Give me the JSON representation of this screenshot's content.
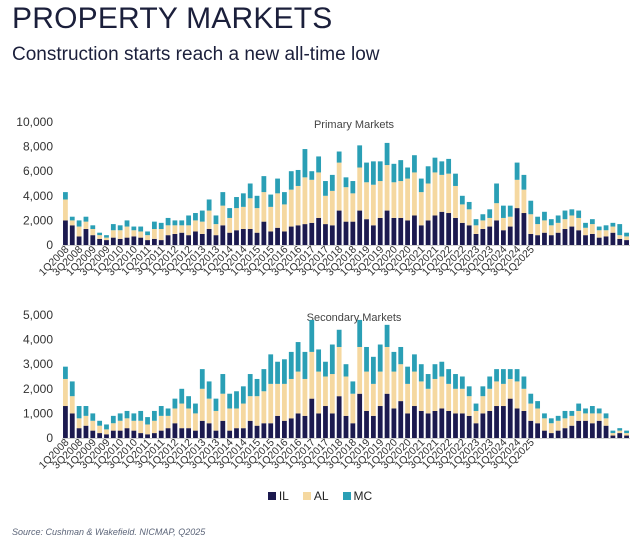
{
  "header": {
    "title": "PROPERTY MARKETS",
    "subtitle": "Construction starts reach a new all-time low"
  },
  "source": "Source: Cushman & Wakefield. NICMAP, Q2025",
  "colors": {
    "IL": "#1c1a4f",
    "AL": "#f5d8a0",
    "MC": "#2a9fb5"
  },
  "chart_data": [
    {
      "type": "bar",
      "stacked": true,
      "title": "Primary Markets",
      "xlabel": "",
      "ylabel": "",
      "ylim": [
        0,
        10000
      ],
      "yticks": [
        "0",
        "2,000",
        "4,000",
        "6,000",
        "8,000",
        "10,000"
      ],
      "ytick_values": [
        0,
        2000,
        4000,
        6000,
        8000,
        10000
      ],
      "grid": false,
      "legend": "bottom-center",
      "x_tick_labels": [
        "1Q2008",
        "3Q2008",
        "1Q2009",
        "3Q2009",
        "1Q2010",
        "3Q2010",
        "1Q2011",
        "3Q2011",
        "1Q2012",
        "3Q2012",
        "1Q2013",
        "3Q2013",
        "1Q2014",
        "3Q2014",
        "1Q2015",
        "3Q2015",
        "1Q2016",
        "3Q2016",
        "1Q2017",
        "3Q2017",
        "1Q2018",
        "3Q2018",
        "1Q2019",
        "3Q2019",
        "1Q2020",
        "3Q2020",
        "1Q2021",
        "3Q2021",
        "1Q2022",
        "3Q2022",
        "1Q2023",
        "3Q2023",
        "1Q2024",
        "3Q2024",
        "1Q2025"
      ],
      "series": [
        {
          "name": "IL",
          "values": [
            2000,
            1600,
            700,
            1300,
            800,
            500,
            400,
            600,
            500,
            600,
            700,
            600,
            400,
            500,
            400,
            800,
            900,
            1000,
            800,
            1100,
            900,
            1300,
            800,
            1600,
            1000,
            1200,
            1300,
            1300,
            1000,
            1900,
            1100,
            1400,
            1100,
            1500,
            1600,
            1700,
            1800,
            2200,
            1700,
            1600,
            2800,
            1900,
            1900,
            2800,
            2100,
            1600,
            2200,
            2800,
            2200,
            2200,
            2000,
            2400,
            1600,
            2000,
            2400,
            2700,
            2600,
            2200,
            1800,
            1600,
            900,
            1300,
            1500,
            2000,
            1200,
            1500,
            3000,
            2600,
            900,
            800,
            1000,
            800,
            1000,
            1300,
            1500,
            1200,
            800,
            900,
            600,
            700,
            1000,
            500,
            400
          ]
        },
        {
          "name": "AL",
          "values": [
            1700,
            400,
            800,
            600,
            500,
            300,
            200,
            600,
            700,
            900,
            500,
            500,
            400,
            800,
            900,
            800,
            700,
            600,
            800,
            900,
            1000,
            1500,
            900,
            1600,
            1200,
            1800,
            1800,
            2500,
            2000,
            2400,
            2000,
            2800,
            2200,
            3000,
            3200,
            3800,
            3500,
            3700,
            2300,
            2800,
            3900,
            2800,
            2300,
            3500,
            3000,
            3300,
            3000,
            3700,
            2900,
            3000,
            3400,
            3500,
            2700,
            3000,
            3500,
            3000,
            3200,
            2600,
            1500,
            1300,
            700,
            700,
            700,
            1400,
            1000,
            800,
            2300,
            1900,
            1600,
            900,
            1000,
            800,
            800,
            800,
            900,
            1000,
            600,
            800,
            600,
            500,
            500,
            300,
            300
          ]
        },
        {
          "name": "MC",
          "values": [
            600,
            300,
            500,
            400,
            300,
            200,
            200,
            500,
            400,
            500,
            300,
            400,
            300,
            600,
            500,
            600,
            400,
            400,
            800,
            600,
            900,
            900,
            700,
            1100,
            800,
            900,
            1100,
            1200,
            1000,
            1300,
            1000,
            1200,
            1000,
            1500,
            1300,
            2300,
            700,
            1300,
            1200,
            1300,
            900,
            800,
            1000,
            1800,
            1600,
            1900,
            1600,
            1800,
            1500,
            1700,
            900,
            1400,
            1100,
            1400,
            1200,
            1100,
            1200,
            1000,
            700,
            600,
            500,
            500,
            700,
            1600,
            1000,
            900,
            1400,
            1200,
            1100,
            600,
            700,
            500,
            600,
            700,
            500,
            600,
            400,
            400,
            300,
            400,
            300,
            900,
            300
          ]
        }
      ]
    },
    {
      "type": "bar",
      "stacked": true,
      "title": "Secondary Markets",
      "xlabel": "",
      "ylabel": "",
      "ylim": [
        0,
        5000
      ],
      "yticks": [
        "0",
        "1,000",
        "2,000",
        "3,000",
        "4,000",
        "5,000"
      ],
      "ytick_values": [
        0,
        1000,
        2000,
        3000,
        4000,
        5000
      ],
      "grid": false,
      "legend": "bottom-center",
      "x_tick_labels": [
        "1Q2008",
        "3Q2008",
        "1Q2009",
        "3Q2009",
        "1Q2010",
        "3Q2010",
        "1Q2011",
        "3Q2011",
        "1Q2012",
        "3Q2012",
        "1Q2013",
        "3Q2013",
        "1Q2014",
        "3Q2014",
        "1Q2015",
        "3Q2015",
        "1Q2016",
        "3Q2016",
        "1Q2017",
        "3Q2017",
        "1Q2018",
        "3Q2018",
        "1Q2019",
        "3Q2019",
        "1Q2020",
        "3Q2020",
        "1Q2021",
        "3Q2021",
        "1Q2022",
        "3Q2022",
        "1Q2023",
        "3Q2023",
        "1Q2024",
        "3Q2024",
        "1Q2025"
      ],
      "series": [
        {
          "name": "IL",
          "values": [
            1300,
            1000,
            400,
            500,
            300,
            200,
            150,
            300,
            300,
            400,
            300,
            200,
            150,
            200,
            300,
            400,
            600,
            400,
            400,
            300,
            700,
            600,
            300,
            700,
            300,
            400,
            400,
            700,
            500,
            600,
            600,
            900,
            700,
            800,
            1000,
            900,
            1600,
            1000,
            1300,
            1000,
            1700,
            900,
            600,
            1800,
            1100,
            900,
            1300,
            1800,
            1200,
            1500,
            1000,
            1300,
            1100,
            1000,
            1100,
            1200,
            1100,
            1000,
            1000,
            900,
            600,
            1000,
            1100,
            1300,
            1300,
            1600,
            1200,
            1100,
            700,
            600,
            300,
            200,
            300,
            400,
            500,
            700,
            700,
            600,
            700,
            500,
            100,
            200,
            100
          ]
        },
        {
          "name": "AL",
          "values": [
            1100,
            700,
            400,
            400,
            400,
            300,
            200,
            300,
            400,
            400,
            400,
            500,
            400,
            500,
            600,
            500,
            600,
            1000,
            800,
            700,
            1300,
            1000,
            800,
            1100,
            900,
            800,
            1000,
            1000,
            1200,
            1300,
            1600,
            1300,
            1500,
            1600,
            1700,
            1500,
            1900,
            1700,
            1200,
            1600,
            2000,
            1600,
            1200,
            1900,
            1600,
            1300,
            1400,
            1900,
            1500,
            1500,
            1200,
            1400,
            1200,
            1000,
            1300,
            1300,
            1100,
            1000,
            1000,
            800,
            500,
            700,
            900,
            1000,
            900,
            800,
            1100,
            900,
            700,
            600,
            500,
            400,
            400,
            400,
            400,
            400,
            300,
            400,
            300,
            300,
            100,
            100,
            100
          ]
        },
        {
          "name": "MC",
          "values": [
            500,
            600,
            500,
            400,
            300,
            200,
            200,
            300,
            300,
            300,
            300,
            400,
            300,
            400,
            400,
            300,
            400,
            600,
            500,
            400,
            800,
            700,
            500,
            800,
            600,
            700,
            700,
            900,
            700,
            900,
            1200,
            900,
            1000,
            1100,
            1200,
            1100,
            1300,
            900,
            600,
            1200,
            700,
            500,
            500,
            1100,
            1000,
            1100,
            1100,
            900,
            800,
            700,
            700,
            700,
            700,
            600,
            600,
            600,
            600,
            600,
            500,
            400,
            300,
            400,
            500,
            500,
            600,
            400,
            500,
            500,
            400,
            300,
            200,
            200,
            200,
            300,
            200,
            300,
            200,
            300,
            200,
            200,
            100,
            100,
            100
          ]
        }
      ]
    }
  ]
}
